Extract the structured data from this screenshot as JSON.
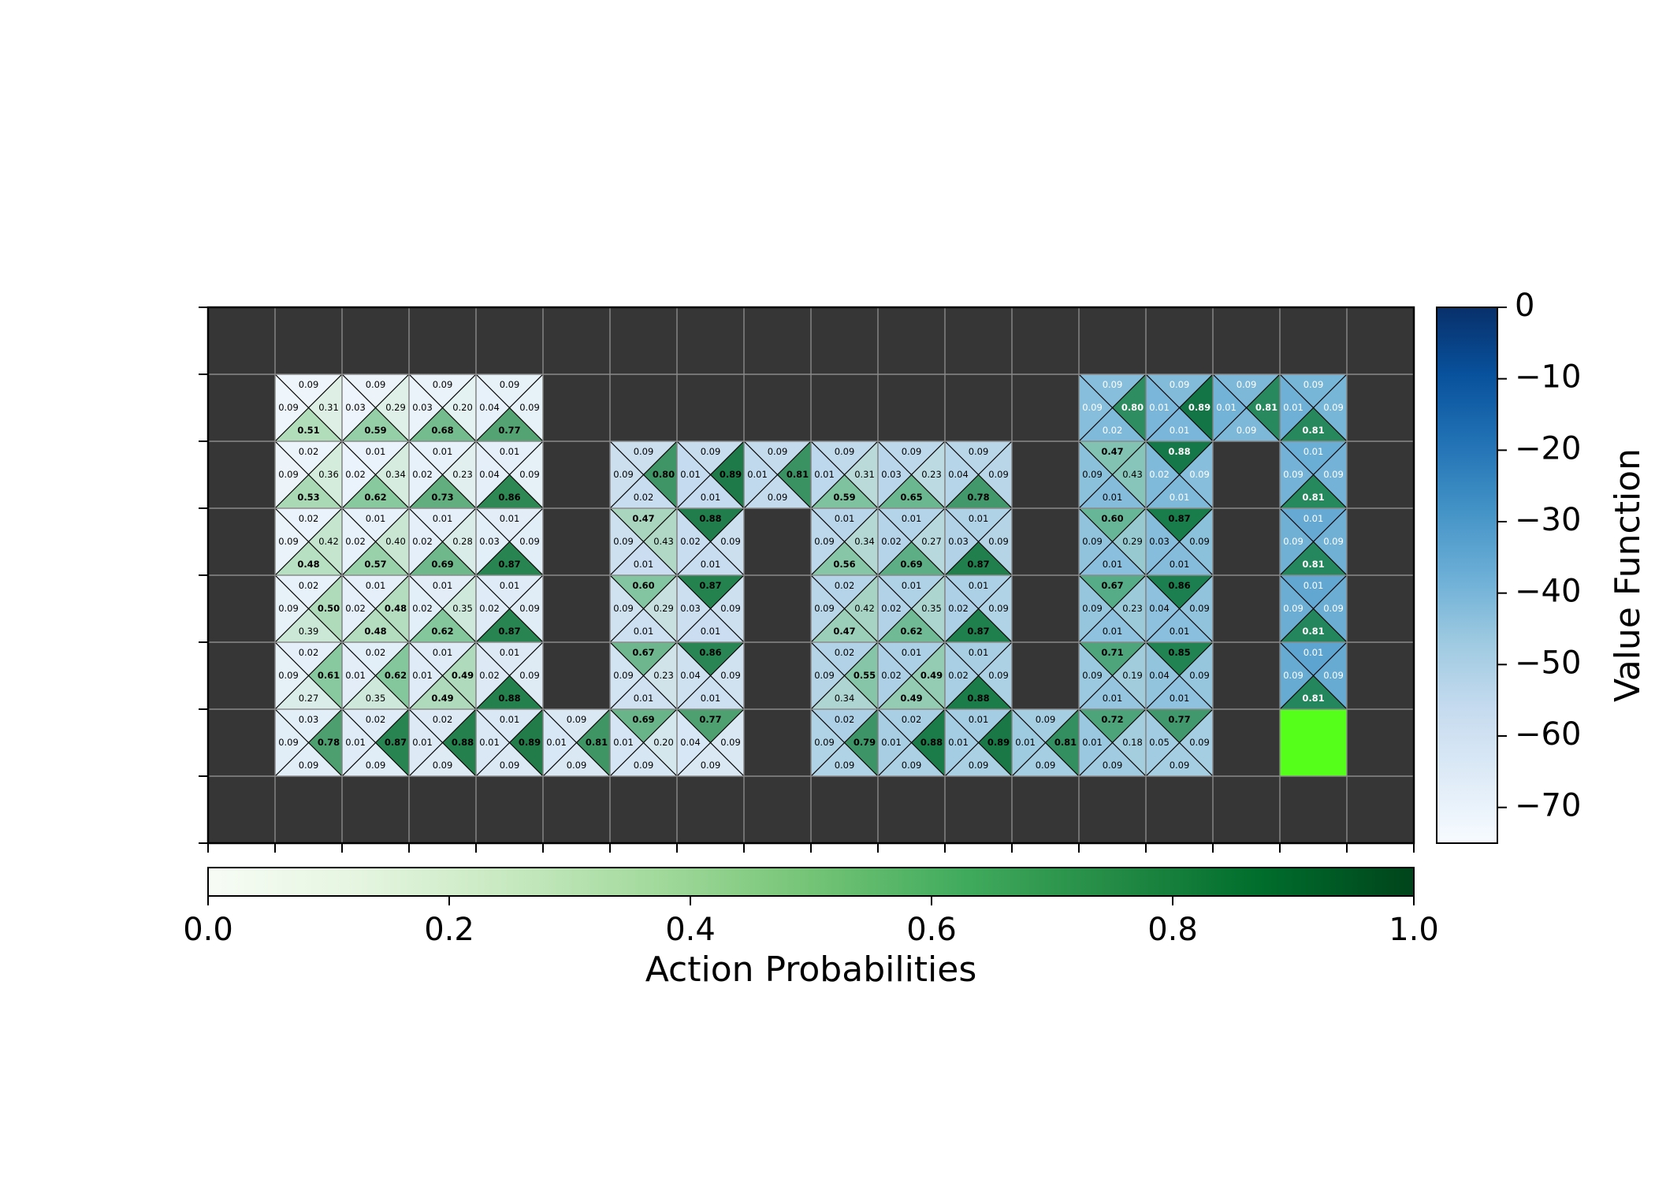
{
  "chart_data": {
    "type": "heatmap",
    "grid": {
      "cols": 18,
      "rows": 8,
      "wall_color": "#363636",
      "goal_color": "#55ff1a"
    },
    "value_colorbar": {
      "label": "Value Function",
      "ticks": [
        "0",
        "−10",
        "−20",
        "−30",
        "−40",
        "−50",
        "−60",
        "−70"
      ],
      "tick_values": [
        0,
        -10,
        -20,
        -30,
        -40,
        -50,
        -60,
        -70
      ],
      "range": [
        -75,
        0
      ],
      "colormap": "Blues"
    },
    "prob_colorbar": {
      "label": "Action Probabilities",
      "ticks": [
        "0.0",
        "0.2",
        "0.4",
        "0.6",
        "0.8",
        "1.0"
      ],
      "tick_values": [
        0.0,
        0.2,
        0.4,
        0.6,
        0.8,
        1.0
      ],
      "range": [
        0,
        1
      ],
      "colormap": "Greens"
    },
    "goal": {
      "col": 16,
      "row": 6
    },
    "cells": [
      {
        "c": 1,
        "r": 1,
        "v": -72,
        "p": [
          "0.09",
          "0.31",
          "0.51",
          "0.09"
        ]
      },
      {
        "c": 2,
        "r": 1,
        "v": -71,
        "p": [
          "0.09",
          "0.29",
          "0.59",
          "0.03"
        ]
      },
      {
        "c": 3,
        "r": 1,
        "v": -70,
        "p": [
          "0.09",
          "0.20",
          "0.68",
          "0.03"
        ]
      },
      {
        "c": 4,
        "r": 1,
        "v": -69,
        "p": [
          "0.09",
          "0.09",
          "0.77",
          "0.04"
        ]
      },
      {
        "c": 1,
        "r": 2,
        "v": -71,
        "p": [
          "0.02",
          "0.36",
          "0.53",
          "0.09"
        ]
      },
      {
        "c": 2,
        "r": 2,
        "v": -70,
        "p": [
          "0.01",
          "0.34",
          "0.62",
          "0.02"
        ]
      },
      {
        "c": 3,
        "r": 2,
        "v": -69,
        "p": [
          "0.01",
          "0.23",
          "0.73",
          "0.02"
        ]
      },
      {
        "c": 4,
        "r": 2,
        "v": -68,
        "p": [
          "0.01",
          "0.09",
          "0.86",
          "0.04"
        ]
      },
      {
        "c": 1,
        "r": 3,
        "v": -70,
        "p": [
          "0.02",
          "0.42",
          "0.48",
          "0.09"
        ]
      },
      {
        "c": 2,
        "r": 3,
        "v": -69,
        "p": [
          "0.01",
          "0.40",
          "0.57",
          "0.02"
        ]
      },
      {
        "c": 3,
        "r": 3,
        "v": -68,
        "p": [
          "0.01",
          "0.28",
          "0.69",
          "0.02"
        ]
      },
      {
        "c": 4,
        "r": 3,
        "v": -67,
        "p": [
          "0.01",
          "0.09",
          "0.87",
          "0.03"
        ]
      },
      {
        "c": 1,
        "r": 4,
        "v": -69,
        "p": [
          "0.02",
          "0.50",
          "0.39",
          "0.09"
        ]
      },
      {
        "c": 2,
        "r": 4,
        "v": -68,
        "p": [
          "0.01",
          "0.48",
          "0.48",
          "0.02"
        ]
      },
      {
        "c": 3,
        "r": 4,
        "v": -67,
        "p": [
          "0.01",
          "0.35",
          "0.62",
          "0.02"
        ]
      },
      {
        "c": 4,
        "r": 4,
        "v": -66,
        "p": [
          "0.01",
          "0.09",
          "0.87",
          "0.02"
        ]
      },
      {
        "c": 1,
        "r": 5,
        "v": -68,
        "p": [
          "0.02",
          "0.61",
          "0.27",
          "0.09"
        ]
      },
      {
        "c": 2,
        "r": 5,
        "v": -67,
        "p": [
          "0.02",
          "0.62",
          "0.35",
          "0.01"
        ]
      },
      {
        "c": 3,
        "r": 5,
        "v": -66,
        "p": [
          "0.01",
          "0.49",
          "0.49",
          "0.01"
        ]
      },
      {
        "c": 4,
        "r": 5,
        "v": -65,
        "p": [
          "0.01",
          "0.09",
          "0.88",
          "0.02"
        ]
      },
      {
        "c": 1,
        "r": 6,
        "v": -67,
        "p": [
          "0.03",
          "0.78",
          "0.09",
          "0.09"
        ]
      },
      {
        "c": 2,
        "r": 6,
        "v": -66,
        "p": [
          "0.02",
          "0.87",
          "0.09",
          "0.01"
        ]
      },
      {
        "c": 3,
        "r": 6,
        "v": -65,
        "p": [
          "0.02",
          "0.88",
          "0.09",
          "0.01"
        ]
      },
      {
        "c": 4,
        "r": 6,
        "v": -64,
        "p": [
          "0.01",
          "0.89",
          "0.09",
          "0.01"
        ]
      },
      {
        "c": 5,
        "r": 6,
        "v": -63,
        "p": [
          "0.09",
          "0.81",
          "0.09",
          "0.01"
        ]
      },
      {
        "c": 6,
        "r": 6,
        "v": -62,
        "p": [
          "0.69",
          "0.20",
          "0.09",
          "0.01"
        ]
      },
      {
        "c": 7,
        "r": 6,
        "v": -63,
        "p": [
          "0.77",
          "0.09",
          "0.09",
          "0.04"
        ]
      },
      {
        "c": 6,
        "r": 2,
        "v": -57,
        "p": [
          "0.09",
          "0.80",
          "0.02",
          "0.09"
        ]
      },
      {
        "c": 7,
        "r": 2,
        "v": -56,
        "p": [
          "0.09",
          "0.89",
          "0.01",
          "0.01"
        ]
      },
      {
        "c": 8,
        "r": 2,
        "v": -55,
        "p": [
          "0.09",
          "0.81",
          "0.09",
          "0.01"
        ]
      },
      {
        "c": 6,
        "r": 3,
        "v": -58,
        "p": [
          "0.47",
          "0.43",
          "0.01",
          "0.09"
        ]
      },
      {
        "c": 7,
        "r": 3,
        "v": -57,
        "p": [
          "0.88",
          "0.09",
          "0.01",
          "0.02"
        ]
      },
      {
        "c": 6,
        "r": 4,
        "v": -59,
        "p": [
          "0.60",
          "0.29",
          "0.01",
          "0.09"
        ]
      },
      {
        "c": 7,
        "r": 4,
        "v": -58,
        "p": [
          "0.87",
          "0.09",
          "0.01",
          "0.03"
        ]
      },
      {
        "c": 6,
        "r": 5,
        "v": -60,
        "p": [
          "0.67",
          "0.23",
          "0.01",
          "0.09"
        ]
      },
      {
        "c": 7,
        "r": 5,
        "v": -59,
        "p": [
          "0.86",
          "0.09",
          "0.01",
          "0.04"
        ]
      },
      {
        "c": 9,
        "r": 2,
        "v": -54,
        "p": [
          "0.09",
          "0.31",
          "0.59",
          "0.01"
        ]
      },
      {
        "c": 10,
        "r": 2,
        "v": -53,
        "p": [
          "0.09",
          "0.23",
          "0.65",
          "0.03"
        ]
      },
      {
        "c": 11,
        "r": 2,
        "v": -52,
        "p": [
          "0.09",
          "0.09",
          "0.78",
          "0.04"
        ]
      },
      {
        "c": 9,
        "r": 3,
        "v": -53,
        "p": [
          "0.01",
          "0.34",
          "0.56",
          "0.09"
        ]
      },
      {
        "c": 10,
        "r": 3,
        "v": -52,
        "p": [
          "0.01",
          "0.27",
          "0.69",
          "0.02"
        ]
      },
      {
        "c": 11,
        "r": 3,
        "v": -51,
        "p": [
          "0.01",
          "0.09",
          "0.87",
          "0.03"
        ]
      },
      {
        "c": 9,
        "r": 4,
        "v": -52,
        "p": [
          "0.02",
          "0.42",
          "0.47",
          "0.09"
        ]
      },
      {
        "c": 10,
        "r": 4,
        "v": -51,
        "p": [
          "0.01",
          "0.35",
          "0.62",
          "0.02"
        ]
      },
      {
        "c": 11,
        "r": 4,
        "v": -50,
        "p": [
          "0.01",
          "0.09",
          "0.87",
          "0.02"
        ]
      },
      {
        "c": 9,
        "r": 5,
        "v": -51,
        "p": [
          "0.02",
          "0.55",
          "0.34",
          "0.09"
        ]
      },
      {
        "c": 10,
        "r": 5,
        "v": -50,
        "p": [
          "0.01",
          "0.49",
          "0.49",
          "0.02"
        ]
      },
      {
        "c": 11,
        "r": 5,
        "v": -49,
        "p": [
          "0.01",
          "0.09",
          "0.88",
          "0.02"
        ]
      },
      {
        "c": 9,
        "r": 6,
        "v": -50,
        "p": [
          "0.02",
          "0.79",
          "0.09",
          "0.09"
        ]
      },
      {
        "c": 10,
        "r": 6,
        "v": -49,
        "p": [
          "0.02",
          "0.88",
          "0.09",
          "0.01"
        ]
      },
      {
        "c": 11,
        "r": 6,
        "v": -48,
        "p": [
          "0.01",
          "0.89",
          "0.09",
          "0.01"
        ]
      },
      {
        "c": 12,
        "r": 6,
        "v": -47,
        "p": [
          "0.09",
          "0.81",
          "0.09",
          "0.01"
        ]
      },
      {
        "c": 13,
        "r": 6,
        "v": -46,
        "p": [
          "0.72",
          "0.18",
          "0.09",
          "0.01"
        ]
      },
      {
        "c": 14,
        "r": 6,
        "v": -47,
        "p": [
          "0.77",
          "0.09",
          "0.09",
          "0.05"
        ]
      },
      {
        "c": 13,
        "r": 1,
        "v": -41,
        "p": [
          "0.09",
          "0.80",
          "0.02",
          "0.09"
        ]
      },
      {
        "c": 14,
        "r": 1,
        "v": -40,
        "p": [
          "0.09",
          "0.89",
          "0.01",
          "0.01"
        ]
      },
      {
        "c": 15,
        "r": 1,
        "v": -39,
        "p": [
          "0.09",
          "0.81",
          "0.09",
          "0.01"
        ]
      },
      {
        "c": 16,
        "r": 1,
        "v": -38,
        "p": [
          "0.09",
          "0.09",
          "0.81",
          "0.01"
        ]
      },
      {
        "c": 13,
        "r": 2,
        "v": -42,
        "p": [
          "0.47",
          "0.43",
          "0.01",
          "0.09"
        ]
      },
      {
        "c": 14,
        "r": 2,
        "v": -41,
        "p": [
          "0.88",
          "0.09",
          "0.01",
          "0.02"
        ]
      },
      {
        "c": 13,
        "r": 3,
        "v": -43,
        "p": [
          "0.60",
          "0.29",
          "0.01",
          "0.09"
        ]
      },
      {
        "c": 14,
        "r": 3,
        "v": -42,
        "p": [
          "0.87",
          "0.09",
          "0.01",
          "0.03"
        ]
      },
      {
        "c": 13,
        "r": 4,
        "v": -44,
        "p": [
          "0.67",
          "0.23",
          "0.01",
          "0.09"
        ]
      },
      {
        "c": 14,
        "r": 4,
        "v": -43,
        "p": [
          "0.86",
          "0.09",
          "0.01",
          "0.04"
        ]
      },
      {
        "c": 13,
        "r": 5,
        "v": -45,
        "p": [
          "0.71",
          "0.19",
          "0.01",
          "0.09"
        ]
      },
      {
        "c": 14,
        "r": 5,
        "v": -44,
        "p": [
          "0.85",
          "0.09",
          "0.01",
          "0.04"
        ]
      },
      {
        "c": 16,
        "r": 2,
        "v": -37,
        "p": [
          "0.01",
          "0.09",
          "0.81",
          "0.09"
        ]
      },
      {
        "c": 16,
        "r": 3,
        "v": -36,
        "p": [
          "0.01",
          "0.09",
          "0.81",
          "0.09"
        ]
      },
      {
        "c": 16,
        "r": 4,
        "v": -35,
        "p": [
          "0.01",
          "0.09",
          "0.81",
          "0.09"
        ]
      },
      {
        "c": 16,
        "r": 5,
        "v": -34,
        "p": [
          "0.01",
          "0.09",
          "0.81",
          "0.09"
        ]
      }
    ]
  }
}
